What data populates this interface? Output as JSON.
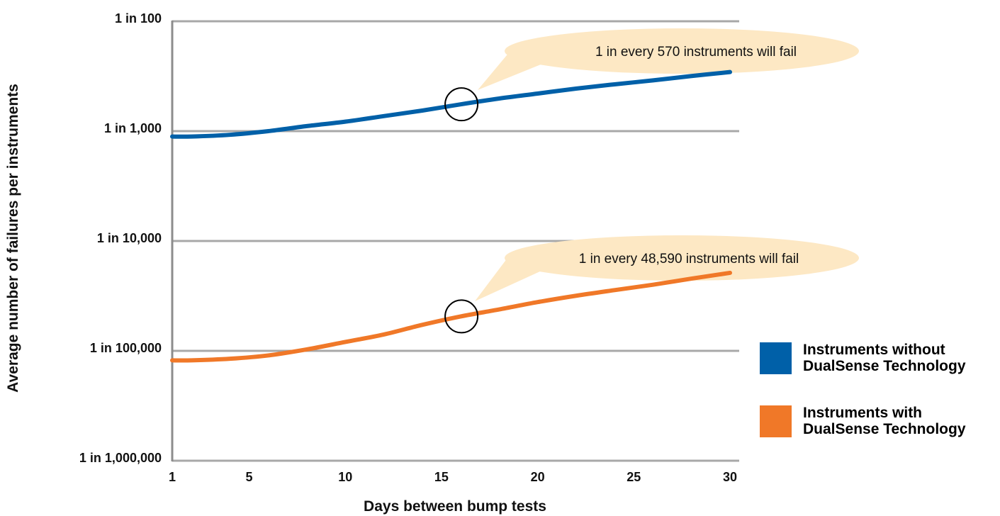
{
  "chart_data": {
    "type": "line",
    "xlabel": "Days between bump tests",
    "ylabel": "Average number of failures per instruments",
    "x_ticks": [
      1,
      5,
      10,
      15,
      20,
      25,
      30
    ],
    "xlim": [
      1,
      30
    ],
    "y_scale": "log",
    "y_ticks": [
      "1 in 100",
      "1 in 1,000",
      "1 in 10,000",
      "1 in 100,000",
      "1 in 1,000,000"
    ],
    "y_tick_denominators": [
      100,
      1000,
      10000,
      100000,
      1000000
    ],
    "ylim_denominator": [
      1000000,
      100
    ],
    "grid": true,
    "legend_position": "right",
    "series": [
      {
        "name": "Instruments without DualSense Technology",
        "color": "#0060a8",
        "x": [
          1,
          2,
          4,
          6,
          8,
          10,
          12,
          14,
          16,
          18,
          20,
          22,
          24,
          26,
          28,
          30
        ],
        "one_in": [
          1120,
          1120,
          1080,
          1000,
          900,
          820,
          730,
          650,
          570,
          505,
          455,
          410,
          375,
          345,
          315,
          290
        ]
      },
      {
        "name": "Instruments with DualSense Technology",
        "color": "#f07828",
        "x": [
          1,
          2,
          4,
          6,
          8,
          10,
          12,
          14,
          16,
          18,
          20,
          22,
          24,
          26,
          28,
          30
        ],
        "one_in": [
          122000,
          122000,
          118000,
          110000,
          97000,
          83000,
          71000,
          58000,
          48590,
          42000,
          36000,
          31500,
          28000,
          25000,
          22000,
          19500
        ]
      }
    ],
    "annotations": [
      {
        "text": "1 in every 570 instruments will fail",
        "x": 16,
        "one_in": 570
      },
      {
        "text": "1 in every 48,590 instruments will fail",
        "x": 16,
        "one_in": 48590
      }
    ]
  },
  "legend": {
    "items": [
      {
        "label_line1": "Instruments without",
        "label_line2": "DualSense Technology",
        "color": "#0060a8"
      },
      {
        "label_line1": "Instruments with",
        "label_line2": "DualSense Technology",
        "color": "#f07828"
      }
    ]
  },
  "colors": {
    "grid": "#a8a8a8",
    "axis": "#8c8c8c",
    "callout_fill": "#fde8c4",
    "marker_stroke": "#000000"
  }
}
